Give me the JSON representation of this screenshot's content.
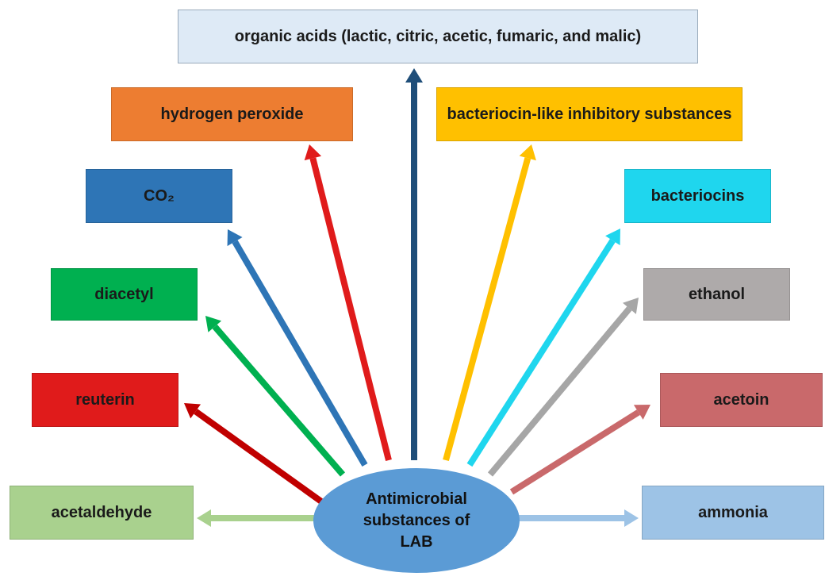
{
  "center": "Antimicrobial substances of LAB",
  "nodes": [
    {
      "label": "organic acids (lactic, citric, acetic, fumaric, and malic)"
    },
    {
      "label": "hydrogen peroxide"
    },
    {
      "label": "bacteriocin-like inhibitory substances"
    },
    {
      "label": "CO₂"
    },
    {
      "label": "bacteriocins"
    },
    {
      "label": "diacetyl"
    },
    {
      "label": "ethanol"
    },
    {
      "label": "reuterin"
    },
    {
      "label": "acetoin"
    },
    {
      "label": "acetaldehyde"
    },
    {
      "label": "ammonia"
    }
  ]
}
